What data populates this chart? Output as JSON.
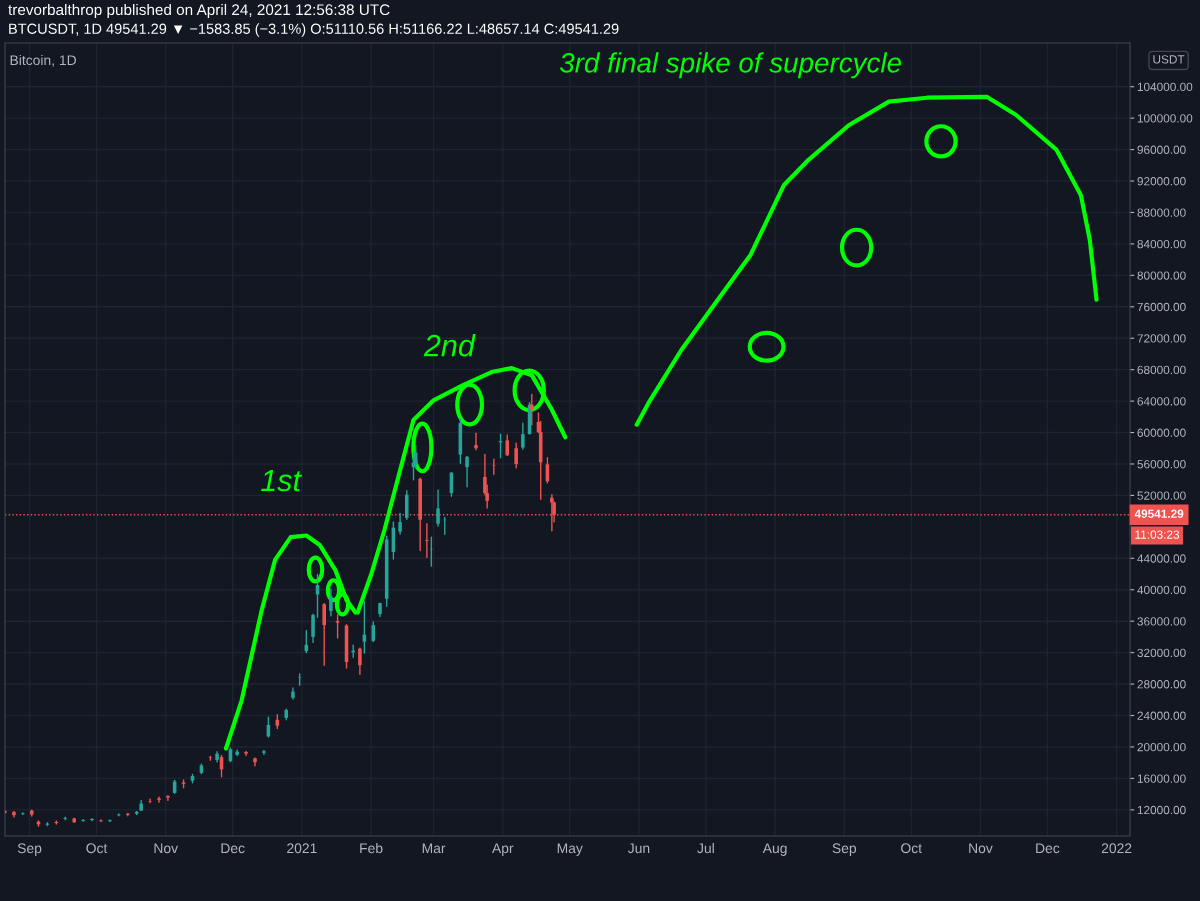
{
  "chart_data": {
    "type": "candlestick",
    "title": "trevorbalthrop published on April 24, 2021 12:56:38 UTC",
    "subtitle": "BTCUSDT, 1D 49541.29 ▼ −1583.85 (−3.1%) O:51110.56 H:51166.22 L:48657.14 C:49541.29",
    "annotations": [
      "Bitcoin, 1D",
      "USDT",
      "11:03:23",
      "1st",
      "2nd",
      "3rd final spike of supercycle"
    ],
    "x": [
      "2020-08-21",
      "2020-08-25",
      "2020-08-29",
      "2020-09-02",
      "2020-09-05",
      "2020-09-09",
      "2020-09-13",
      "2020-09-17",
      "2020-09-21",
      "2020-09-25",
      "2020-09-29",
      "2020-10-03",
      "2020-10-07",
      "2020-10-11",
      "2020-10-15",
      "2020-10-19",
      "2020-10-21",
      "2020-10-25",
      "2020-10-29",
      "2020-11-02",
      "2020-11-05",
      "2020-11-09",
      "2020-11-13",
      "2020-11-17",
      "2020-11-21",
      "2020-11-24",
      "2020-11-26",
      "2020-11-30",
      "2020-12-03",
      "2020-12-07",
      "2020-12-11",
      "2020-12-15",
      "2020-12-17",
      "2020-12-21",
      "2020-12-25",
      "2020-12-28",
      "2020-12-31",
      "2021-01-03",
      "2021-01-06",
      "2021-01-08",
      "2021-01-11",
      "2021-01-14",
      "2021-01-17",
      "2021-01-21",
      "2021-01-24",
      "2021-01-27",
      "2021-01-29",
      "2021-02-02",
      "2021-02-05",
      "2021-02-08",
      "2021-02-11",
      "2021-02-14",
      "2021-02-17",
      "2021-02-20",
      "2021-02-21",
      "2021-02-23",
      "2021-02-26",
      "2021-02-28",
      "2021-03-03",
      "2021-03-06",
      "2021-03-09",
      "2021-03-13",
      "2021-03-16",
      "2021-03-20",
      "2021-03-24",
      "2021-03-25",
      "2021-03-28",
      "2021-03-31",
      "2021-04-03",
      "2021-04-07",
      "2021-04-10",
      "2021-04-13",
      "2021-04-14",
      "2021-04-17",
      "2021-04-18",
      "2021-04-21",
      "2021-04-23",
      "2021-04-24"
    ],
    "ohlc": [
      [
        11850,
        11880,
        11600,
        11650
      ],
      [
        11750,
        11770,
        11100,
        11320
      ],
      [
        11450,
        11600,
        11400,
        11550
      ],
      [
        11900,
        11950,
        11200,
        11400
      ],
      [
        10500,
        10600,
        9900,
        10150
      ],
      [
        10100,
        10350,
        10000,
        10240
      ],
      [
        10450,
        10580,
        10200,
        10320
      ],
      [
        10850,
        11050,
        10750,
        10950
      ],
      [
        10900,
        10950,
        10400,
        10420
      ],
      [
        10600,
        10750,
        10550,
        10720
      ],
      [
        10700,
        10860,
        10650,
        10840
      ],
      [
        10650,
        10700,
        10500,
        10550
      ],
      [
        10550,
        10700,
        10500,
        10680
      ],
      [
        11300,
        11480,
        11250,
        11400
      ],
      [
        11500,
        11550,
        11250,
        11350
      ],
      [
        11500,
        11800,
        11400,
        11750
      ],
      [
        11910,
        13200,
        11900,
        12800
      ],
      [
        13100,
        13350,
        12900,
        13030
      ],
      [
        13450,
        13600,
        12950,
        13270
      ],
      [
        13750,
        13800,
        13200,
        13550
      ],
      [
        14150,
        15750,
        14100,
        15590
      ],
      [
        15480,
        15800,
        14800,
        15300
      ],
      [
        15700,
        16500,
        15450,
        16300
      ],
      [
        16700,
        17800,
        16600,
        17650
      ],
      [
        18700,
        18800,
        18300,
        18650
      ],
      [
        18350,
        19400,
        18100,
        19150
      ],
      [
        18700,
        18900,
        16200,
        17150
      ],
      [
        18200,
        19850,
        18100,
        19700
      ],
      [
        19000,
        19600,
        18900,
        19400
      ],
      [
        19350,
        19420,
        18900,
        19150
      ],
      [
        18550,
        18600,
        17600,
        18050
      ],
      [
        19250,
        19560,
        19050,
        19450
      ],
      [
        21350,
        23800,
        21250,
        22800
      ],
      [
        23450,
        24100,
        22350,
        22700
      ],
      [
        23700,
        24800,
        23450,
        24700
      ],
      [
        26250,
        27500,
        26100,
        27050
      ],
      [
        28850,
        29300,
        27850,
        28900
      ],
      [
        32180,
        34800,
        32000,
        33000
      ],
      [
        34000,
        36900,
        33300,
        36800
      ],
      [
        39400,
        41950,
        36500,
        40600
      ],
      [
        38150,
        38250,
        30400,
        35500
      ],
      [
        37300,
        40100,
        36700,
        39150
      ],
      [
        36000,
        36800,
        33850,
        35800
      ],
      [
        35450,
        35550,
        30050,
        30800
      ],
      [
        32050,
        32950,
        31400,
        32250
      ],
      [
        32500,
        32550,
        29250,
        30400
      ],
      [
        33400,
        38550,
        31950,
        34300
      ],
      [
        33500,
        35900,
        33400,
        35500
      ],
      [
        36900,
        38300,
        36600,
        38300
      ],
      [
        38850,
        46800,
        37900,
        46400
      ],
      [
        44800,
        48600,
        43900,
        47900
      ],
      [
        47400,
        49700,
        47100,
        48600
      ],
      [
        49150,
        52600,
        48950,
        52100
      ],
      [
        55600,
        57500,
        54000,
        56200
      ],
      [
        55900,
        58350,
        55500,
        57450
      ],
      [
        54100,
        54200,
        45000,
        48900
      ],
      [
        46300,
        48400,
        44100,
        46200
      ],
      [
        45150,
        46700,
        43000,
        45200
      ],
      [
        48400,
        52650,
        48100,
        50350
      ],
      [
        48850,
        49200,
        47050,
        48900
      ],
      [
        52300,
        54900,
        51900,
        54900
      ],
      [
        57200,
        61800,
        56100,
        61200
      ],
      [
        55600,
        56950,
        53100,
        56900
      ],
      [
        58400,
        59900,
        57800,
        58000
      ],
      [
        54350,
        57200,
        52100,
        52300
      ],
      [
        52300,
        53300,
        50400,
        51300
      ],
      [
        55850,
        56600,
        54700,
        55800
      ],
      [
        58750,
        59800,
        56800,
        58900
      ],
      [
        59000,
        59700,
        57100,
        57100
      ],
      [
        58000,
        58650,
        55500,
        56000
      ],
      [
        58100,
        61200,
        57900,
        59800
      ],
      [
        59800,
        63800,
        59800,
        63550
      ],
      [
        63550,
        64850,
        61000,
        62950
      ],
      [
        61350,
        62500,
        60000,
        60050
      ],
      [
        60050,
        61400,
        51500,
        56200
      ],
      [
        55950,
        56800,
        53600,
        53800
      ],
      [
        51700,
        52100,
        47500,
        51100
      ],
      [
        51110.56,
        51166.22,
        48657.14,
        49541.29
      ]
    ],
    "series": [
      {
        "type": "line",
        "color": "#00ff00",
        "x": [
          "2020-11-28",
          "2020-12-05",
          "2020-12-14",
          "2020-12-20",
          "2020-12-27",
          "2021-01-03",
          "2021-01-09",
          "2021-01-16",
          "2021-01-21",
          "2021-01-25"
        ],
        "values": [
          19800,
          25900,
          37400,
          43800,
          46700,
          46900,
          45700,
          42500,
          38700,
          37100
        ]
      },
      {
        "type": "line",
        "color": "#00ff00",
        "x": [
          "2021-01-26",
          "2021-02-01",
          "2021-02-07",
          "2021-02-14",
          "2021-02-20",
          "2021-03-01",
          "2021-03-14",
          "2021-03-27",
          "2021-04-05",
          "2021-04-14",
          "2021-04-23",
          "2021-04-29"
        ],
        "values": [
          37100,
          41900,
          47600,
          55200,
          61600,
          64100,
          66000,
          67700,
          68200,
          67300,
          62900,
          59400
        ]
      },
      {
        "type": "line",
        "color": "#00ff00",
        "x": [
          "2021-05-31",
          "2021-06-06",
          "2021-06-20",
          "2021-07-03",
          "2021-07-21",
          "2021-08-05",
          "2021-08-16",
          "2021-09-03",
          "2021-09-21",
          "2021-10-08",
          "2021-11-04",
          "2021-11-17",
          "2021-12-05",
          "2021-12-16",
          "2021-12-20",
          "2021-12-23"
        ],
        "values": [
          61000,
          64100,
          70500,
          75600,
          82600,
          91500,
          94700,
          99100,
          102100,
          102600,
          102700,
          100400,
          96000,
          90200,
          84500,
          76900
        ]
      }
    ],
    "line_style": "solid",
    "ref_lines": [
      {
        "axis": "y",
        "value": 49541.29,
        "label": "49541.29",
        "color": "#ef5350",
        "line_style": "dotted"
      }
    ],
    "xlim": [
      "2020-08-21",
      "2022-01-07"
    ],
    "xticks": [
      {
        "value": "2020-09-01",
        "label": "Sep"
      },
      {
        "value": "2020-10-01",
        "label": "Oct"
      },
      {
        "value": "2020-11-01",
        "label": "Nov"
      },
      {
        "value": "2020-12-01",
        "label": "Dec"
      },
      {
        "value": "2021-01-01",
        "label": "2021"
      },
      {
        "value": "2021-02-01",
        "label": "Feb"
      },
      {
        "value": "2021-03-01",
        "label": "Mar"
      },
      {
        "value": "2021-04-01",
        "label": "Apr"
      },
      {
        "value": "2021-05-01",
        "label": "May"
      },
      {
        "value": "2021-06-01",
        "label": "Jun"
      },
      {
        "value": "2021-07-01",
        "label": "Jul"
      },
      {
        "value": "2021-08-01",
        "label": "Aug"
      },
      {
        "value": "2021-09-01",
        "label": "Sep"
      },
      {
        "value": "2021-10-01",
        "label": "Oct"
      },
      {
        "value": "2021-11-01",
        "label": "Nov"
      },
      {
        "value": "2021-12-01",
        "label": "Dec"
      },
      {
        "value": "2022-01-01",
        "label": "2022"
      }
    ],
    "ylim": [
      8670,
      109560
    ],
    "yticks": [
      {
        "value": 12000,
        "label": "12000.00"
      },
      {
        "value": 16000,
        "label": "16000.00"
      },
      {
        "value": 20000,
        "label": "20000.00"
      },
      {
        "value": 24000,
        "label": "24000.00"
      },
      {
        "value": 28000,
        "label": "28000.00"
      },
      {
        "value": 32000,
        "label": "32000.00"
      },
      {
        "value": 36000,
        "label": "36000.00"
      },
      {
        "value": 40000,
        "label": "40000.00"
      },
      {
        "value": 44000,
        "label": "44000.00"
      },
      {
        "value": 52000,
        "label": "52000.00"
      },
      {
        "value": 56000,
        "label": "56000.00"
      },
      {
        "value": 60000,
        "label": "60000.00"
      },
      {
        "value": 64000,
        "label": "64000.00"
      },
      {
        "value": 68000,
        "label": "68000.00"
      },
      {
        "value": 72000,
        "label": "72000.00"
      },
      {
        "value": 76000,
        "label": "76000.00"
      },
      {
        "value": 80000,
        "label": "80000.00"
      },
      {
        "value": 84000,
        "label": "84000.00"
      },
      {
        "value": 88000,
        "label": "88000.00"
      },
      {
        "value": 92000,
        "label": "92000.00"
      },
      {
        "value": 96000,
        "label": "96000.00"
      },
      {
        "value": 100000,
        "label": "100000.00"
      },
      {
        "value": 104000,
        "label": "104000.00"
      }
    ],
    "grid": true,
    "legend": false
  }
}
